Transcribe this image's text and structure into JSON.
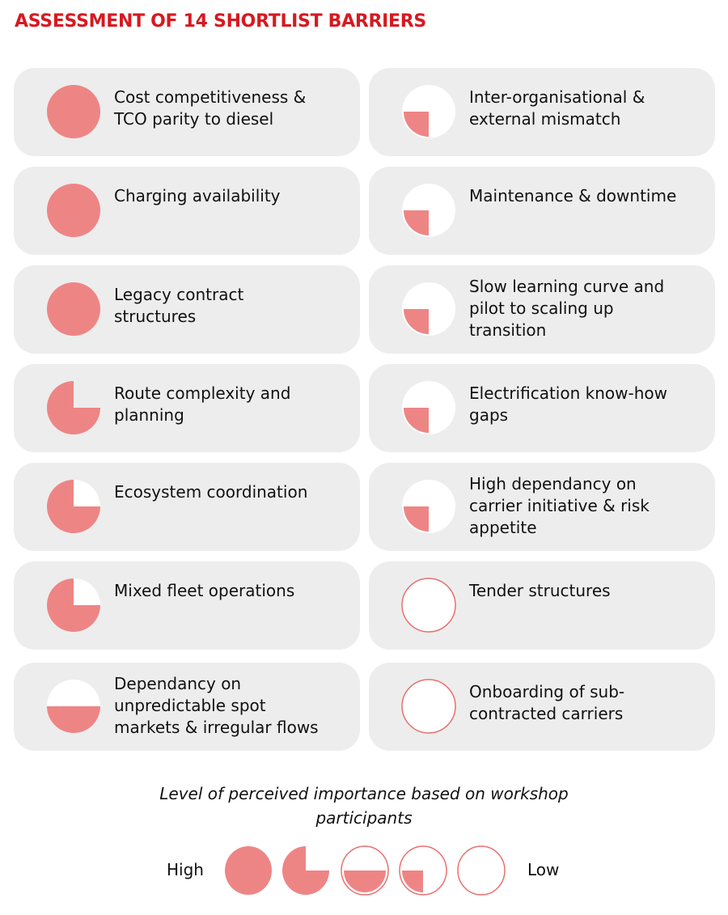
{
  "title": "ASSESSMENT OF 14 SHORTLIST BARRIERS",
  "colors": {
    "title": "#d71920",
    "fill": "#ee8585",
    "card_bg": "#ededed",
    "outline": "#e9706f"
  },
  "barriers_left": [
    {
      "label_lines": [
        "Cost competitiveness &",
        "TCO parity to diesel"
      ],
      "level": "full",
      "icon": "full-circle-icon"
    },
    {
      "label_lines": [
        "Charging availability"
      ],
      "level": "full",
      "icon": "full-circle-icon"
    },
    {
      "label_lines": [
        "Legacy contract",
        "structures"
      ],
      "level": "full",
      "icon": "full-circle-icon"
    },
    {
      "label_lines": [
        "Route complexity and",
        "planning"
      ],
      "level": "three-quarter-open",
      "icon": "three-quarter-circle-icon"
    },
    {
      "label_lines": [
        "Ecosystem coordination"
      ],
      "level": "three-quarter",
      "icon": "three-quarter-circle-icon"
    },
    {
      "label_lines": [
        "Mixed fleet operations"
      ],
      "level": "three-quarter",
      "icon": "three-quarter-circle-icon"
    },
    {
      "label_lines": [
        "Dependancy on",
        "unpredictable spot",
        "markets & irregular flows"
      ],
      "level": "half",
      "icon": "half-circle-icon"
    }
  ],
  "barriers_right": [
    {
      "label_lines": [
        "Inter-organisational &",
        "external mismatch"
      ],
      "level": "quarter",
      "icon": "quarter-circle-icon"
    },
    {
      "label_lines": [
        "Maintenance & downtime"
      ],
      "level": "quarter",
      "icon": "quarter-circle-icon"
    },
    {
      "label_lines": [
        "Slow learning curve and",
        "pilot to scaling up",
        "transition"
      ],
      "level": "quarter",
      "icon": "quarter-circle-icon"
    },
    {
      "label_lines": [
        "Electrification know-how",
        "gaps"
      ],
      "level": "quarter",
      "icon": "quarter-circle-icon"
    },
    {
      "label_lines": [
        "High dependancy on",
        "carrier initiative & risk",
        "appetite"
      ],
      "level": "quarter",
      "icon": "quarter-circle-icon"
    },
    {
      "label_lines": [
        "Tender structures"
      ],
      "level": "empty",
      "icon": "empty-circle-icon"
    },
    {
      "label_lines": [
        "Onboarding of sub-",
        "contracted carriers"
      ],
      "level": "empty",
      "icon": "empty-circle-icon"
    }
  ],
  "legend": {
    "caption_lines": [
      "Level of perceived importance based on workshop",
      "participants"
    ],
    "high_label": "High",
    "low_label": "Low",
    "levels": [
      "full",
      "three-quarter",
      "half",
      "quarter",
      "empty"
    ]
  }
}
